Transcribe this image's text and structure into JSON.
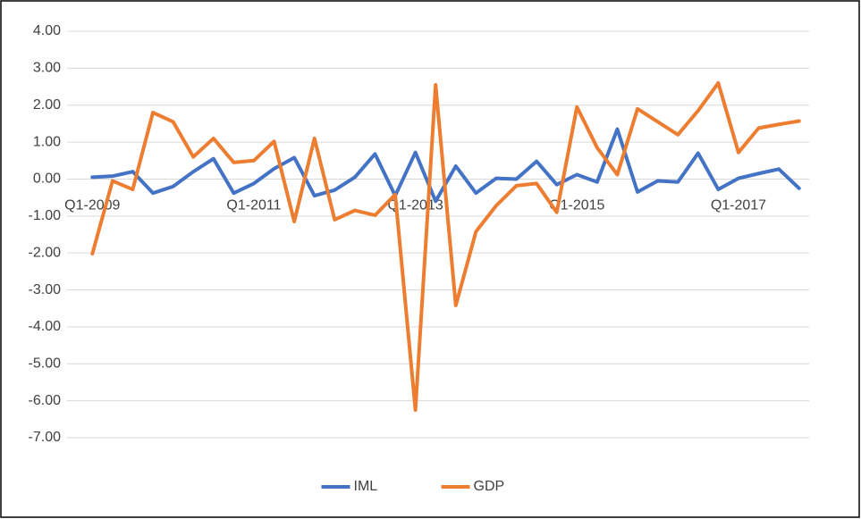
{
  "chart_data": {
    "type": "line",
    "categories": [
      "Q1-2009",
      null,
      null,
      null,
      null,
      null,
      null,
      null,
      "Q1-2011",
      null,
      null,
      null,
      null,
      null,
      null,
      null,
      "Q1-2013",
      null,
      null,
      null,
      null,
      null,
      null,
      null,
      "Q1-2015",
      null,
      null,
      null,
      null,
      null,
      null,
      null,
      "Q1-2017",
      null,
      null,
      null
    ],
    "series": [
      {
        "name": "IML",
        "color": "#4472c4",
        "values": [
          0.05,
          0.08,
          0.2,
          -0.38,
          -0.2,
          0.2,
          0.55,
          -0.38,
          -0.12,
          0.28,
          0.58,
          -0.45,
          -0.3,
          0.05,
          0.68,
          -0.45,
          0.72,
          -0.6,
          0.35,
          -0.38,
          0.02,
          0.0,
          0.48,
          -0.15,
          0.12,
          -0.08,
          1.35,
          -0.35,
          -0.05,
          -0.08,
          0.7,
          -0.28,
          0.02,
          0.15,
          0.27,
          -0.25
        ]
      },
      {
        "name": "GDP",
        "color": "#ed7d31",
        "values": [
          -2.02,
          -0.05,
          -0.28,
          1.8,
          1.55,
          0.6,
          1.1,
          0.45,
          0.5,
          1.02,
          -1.15,
          1.1,
          -1.1,
          -0.85,
          -0.98,
          -0.42,
          -6.25,
          2.55,
          -3.42,
          -1.42,
          -0.72,
          -0.18,
          -0.12,
          -0.9,
          1.95,
          0.85,
          0.12,
          1.9,
          1.55,
          1.2,
          1.85,
          2.6,
          0.72,
          1.38,
          1.48,
          1.57
        ]
      }
    ],
    "ylim": [
      -7,
      4
    ],
    "yticks": [
      {
        "value": 4,
        "label": "4.00"
      },
      {
        "value": 3,
        "label": "3.00"
      },
      {
        "value": 2,
        "label": "2.00"
      },
      {
        "value": 1,
        "label": "1.00"
      },
      {
        "value": 0,
        "label": "0.00"
      },
      {
        "value": -1,
        "label": "-1.00"
      },
      {
        "value": -2,
        "label": "-2.00"
      },
      {
        "value": -3,
        "label": "-3.00"
      },
      {
        "value": -4,
        "label": "-4.00"
      },
      {
        "value": -5,
        "label": "-5.00"
      },
      {
        "value": -6,
        "label": "-6.00"
      },
      {
        "value": -7,
        "label": "-7.00"
      }
    ],
    "grid": true,
    "legend": "bottom"
  }
}
